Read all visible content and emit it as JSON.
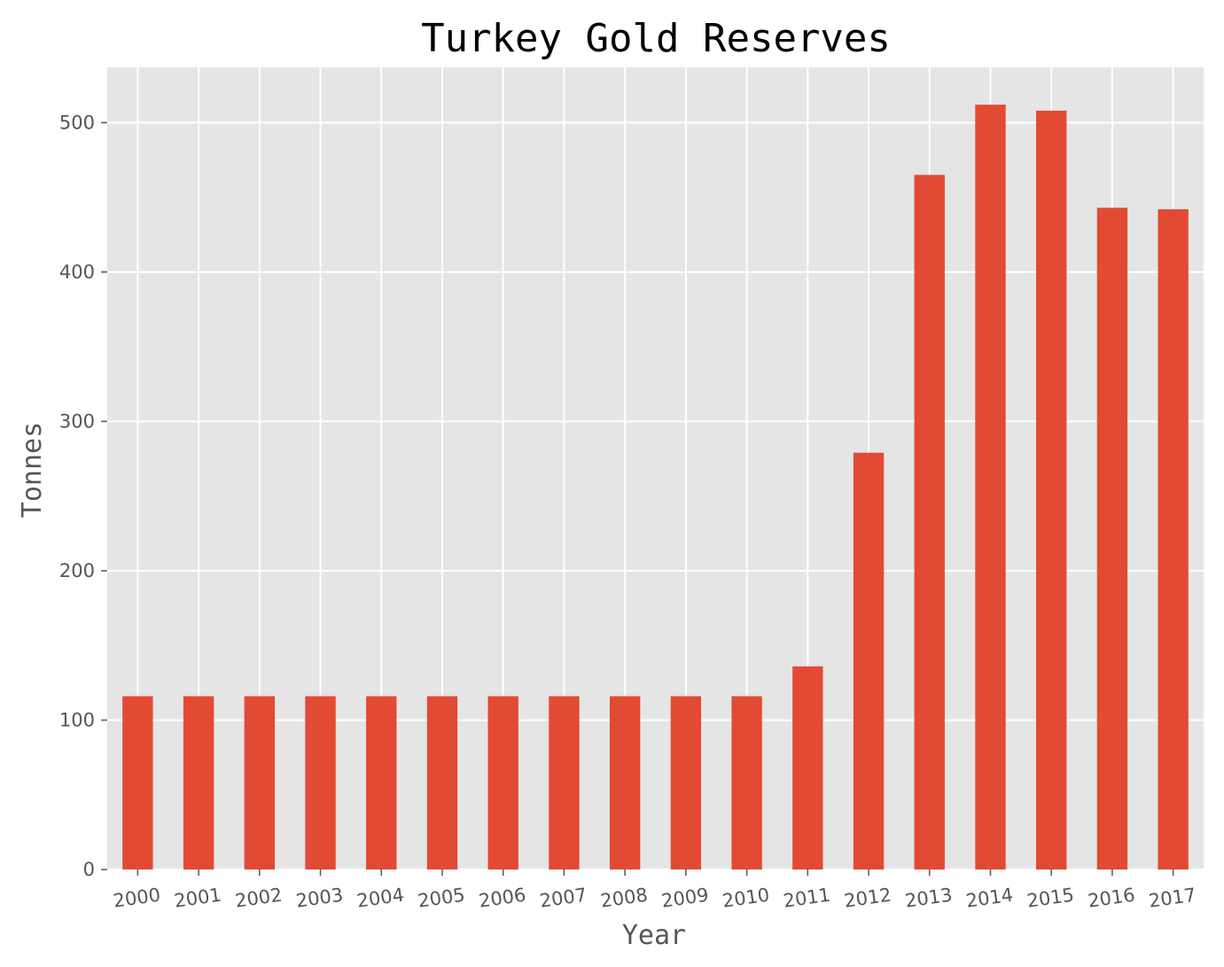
{
  "chart_data": {
    "type": "bar",
    "title": "Turkey Gold Reserves",
    "xlabel": "Year",
    "ylabel": "Tonnes",
    "categories": [
      "2000",
      "2001",
      "2002",
      "2003",
      "2004",
      "2005",
      "2006",
      "2007",
      "2008",
      "2009",
      "2010",
      "2011",
      "2012",
      "2013",
      "2014",
      "2015",
      "2016",
      "2017"
    ],
    "values": [
      116,
      116,
      116,
      116,
      116,
      116,
      116,
      116,
      116,
      116,
      116,
      136,
      279,
      465,
      512,
      508,
      443,
      442
    ],
    "ylim": [
      0,
      537
    ],
    "yticks": [
      0,
      100,
      200,
      300,
      400,
      500
    ],
    "grid": true,
    "legend": "none",
    "colors": {
      "bar": "#E24A33",
      "plot_background": "#E5E5E5",
      "grid": "#FFFFFF"
    }
  }
}
